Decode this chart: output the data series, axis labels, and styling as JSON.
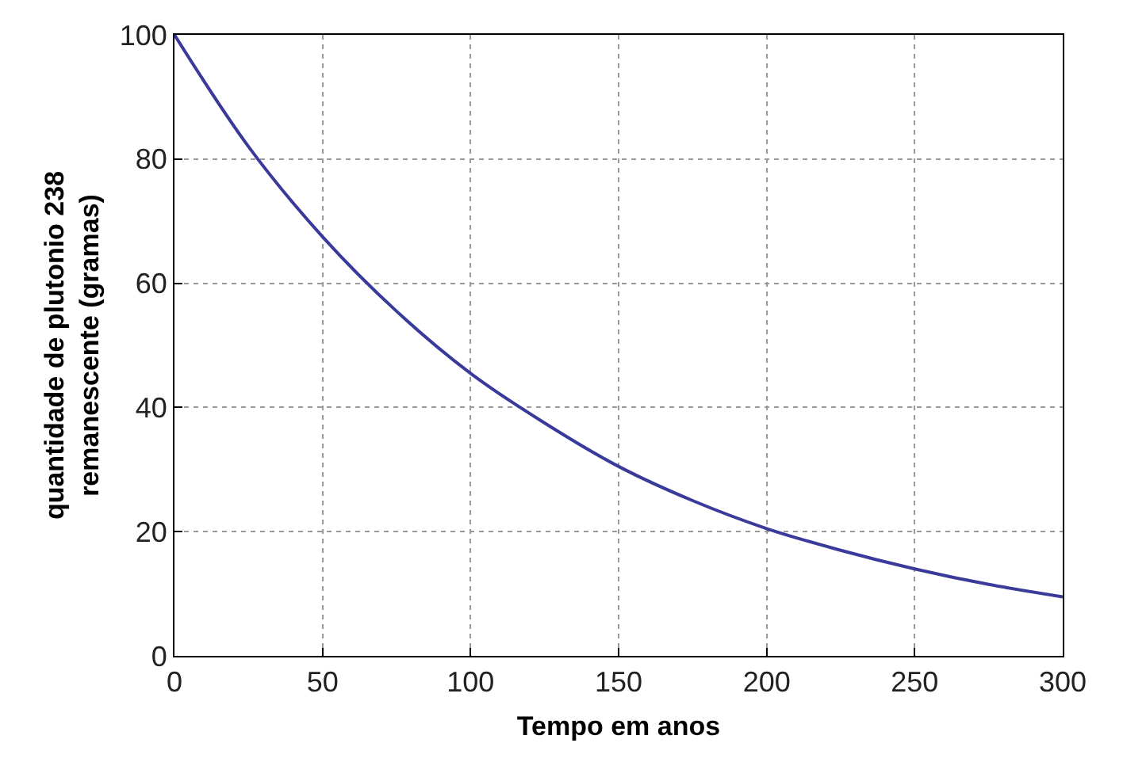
{
  "chart_data": {
    "type": "line",
    "xlabel": "Tempo em anos",
    "ylabel": "quantidade de plutonio 238\nremanescente (gramas)",
    "x": [
      0,
      25,
      50,
      75,
      100,
      125,
      150,
      175,
      200,
      225,
      250,
      275,
      300
    ],
    "series": [
      {
        "color": "#3a3a9a",
        "values": [
          100,
          82,
          67.5,
          55.5,
          45.5,
          37.5,
          30.5,
          25,
          20.5,
          17,
          14,
          11.5,
          9.5
        ]
      }
    ],
    "xlim": [
      0,
      300
    ],
    "ylim": [
      0,
      100
    ],
    "xticks": [
      0,
      50,
      100,
      150,
      200,
      250,
      300
    ],
    "yticks": [
      0,
      20,
      40,
      60,
      80,
      100
    ],
    "grid": true,
    "line_style": "solid",
    "marker": "none",
    "legend": false
  }
}
